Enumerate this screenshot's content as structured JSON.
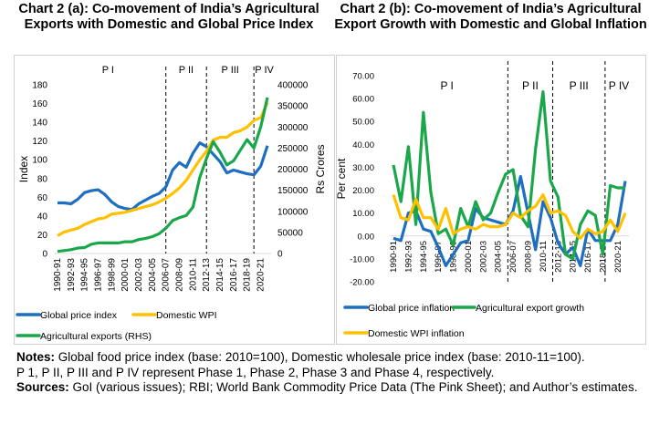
{
  "chart_data": [
    {
      "type": "line",
      "title": "Chart 2 (a): Co-movement of India’s Agricultural Exports with Domestic and Global Price Index",
      "ylabel": "Index",
      "y2label": "Rs Crores",
      "ylim": [
        0,
        180
      ],
      "yticks": [
        0,
        20,
        40,
        60,
        80,
        100,
        120,
        140,
        160,
        180
      ],
      "y2lim": [
        0,
        400000
      ],
      "y2ticks": [
        0,
        50000,
        100000,
        150000,
        200000,
        250000,
        300000,
        350000,
        400000
      ],
      "categories": [
        "1990-91",
        "1991-92",
        "1992-93",
        "1993-94",
        "1994-95",
        "1995-96",
        "1996-97",
        "1997-98",
        "1998-99",
        "1999-00",
        "2000-01",
        "2001-02",
        "2002-03",
        "2003-04",
        "2004-05",
        "2005-06",
        "2006-07",
        "2007-08",
        "2008-09",
        "2009-10",
        "2010-11",
        "2011-12",
        "2012-13",
        "2013-14",
        "2014-15",
        "2015-16",
        "2016-17",
        "2017-18",
        "2018-19",
        "2019-20",
        "2020-21",
        "2021-22"
      ],
      "xtick_labels": [
        "1990-91",
        "1992-93",
        "1994-95",
        "1996-97",
        "1998-99",
        "2000-01",
        "2002-03",
        "2004-05",
        "2006-07",
        "2008-09",
        "2010-11",
        "2012-13",
        "2014-15",
        "2016-17",
        "2018-19",
        "2020-21"
      ],
      "phases": [
        "P I",
        "P II",
        "P III",
        "P IV"
      ],
      "phase_dividers": [
        "2006-07",
        "2012-13",
        "2019-20"
      ],
      "grid": false,
      "legend_position": "bottom",
      "series": [
        {
          "name": "Global price index",
          "color": "#1f6fc0",
          "axis": "left",
          "values": [
            54,
            54,
            53,
            58,
            65,
            67,
            68,
            63,
            55,
            50,
            48,
            47,
            53,
            57,
            61,
            64,
            71,
            89,
            97,
            92,
            107,
            118,
            114,
            106,
            98,
            86,
            89,
            87,
            85,
            84,
            93,
            115
          ]
        },
        {
          "name": "Domestic WPI",
          "color": "#ffc000",
          "axis": "left",
          "values": [
            19,
            23,
            25,
            27,
            31,
            34,
            37,
            38,
            42,
            43,
            44,
            46,
            48,
            50,
            52,
            55,
            59,
            64,
            70,
            78,
            89,
            100,
            109,
            121,
            124,
            124,
            129,
            131,
            135,
            142,
            145,
            161
          ]
        },
        {
          "name": "Agricultural exports (RHS)",
          "color": "#1aa74a",
          "axis": "right",
          "values": [
            5000,
            7000,
            9000,
            13000,
            14000,
            22000,
            25000,
            25000,
            25000,
            25000,
            28000,
            28000,
            33000,
            36000,
            40000,
            47000,
            60000,
            78000,
            85000,
            90000,
            110000,
            180000,
            225000,
            265000,
            240000,
            210000,
            220000,
            245000,
            270000,
            250000,
            300000,
            370000
          ]
        }
      ]
    },
    {
      "type": "line",
      "title": "Chart 2 (b): Co-movement of India’s Agricultural Export Growth with Domestic and Global Inflation",
      "ylabel": "Per cent",
      "ylim": [
        -20,
        70
      ],
      "yticks": [
        "-20.00",
        "-10.00",
        "0.00",
        "10.00",
        "20.00",
        "30.00",
        "40.00",
        "50.00",
        "60.00",
        "70.00"
      ],
      "categories": [
        "1990-91",
        "1991-92",
        "1992-93",
        "1993-94",
        "1994-95",
        "1995-96",
        "1996-97",
        "1997-98",
        "1998-99",
        "1999-00",
        "2000-01",
        "2001-02",
        "2002-03",
        "2003-04",
        "2004-05",
        "2005-06",
        "2006-07",
        "2007-08",
        "2008-09",
        "2009-10",
        "2010-11",
        "2011-12",
        "2012-13",
        "2013-14",
        "2014-15",
        "2015-16",
        "2016-17",
        "2017-18",
        "2018-19",
        "2019-20",
        "2020-21",
        "2021-22"
      ],
      "xtick_labels": [
        "1990-91",
        "1992-93",
        "1994-95",
        "1996-97",
        "1998-99",
        "2000-01",
        "2002-03",
        "2004-05",
        "2006-07",
        "2008-09",
        "2010-11",
        "2012-13",
        "2014-15",
        "2016-17",
        "2018-19",
        "2020-21"
      ],
      "phases": [
        "P I",
        "P II",
        "P III",
        "P IV"
      ],
      "phase_dividers": [
        "2005-06",
        "2011-12",
        "2018-19"
      ],
      "grid": false,
      "legend_position": "bottom",
      "series": [
        {
          "name": "Global price inflation",
          "color": "#1f6fc0",
          "values": [
            -1,
            -2,
            10,
            11,
            3,
            2,
            -5,
            -13,
            -8,
            -3,
            -2,
            12,
            8,
            7,
            6,
            5,
            11,
            26,
            10,
            -6,
            15,
            8,
            -3,
            -8,
            -5,
            -13,
            3,
            -2,
            -2,
            -2,
            5,
            24
          ]
        },
        {
          "name": "Agricultural export growth",
          "color": "#1aa74a",
          "values": [
            31,
            15,
            39,
            5,
            54,
            19,
            1,
            3,
            -4,
            12,
            4,
            15,
            7,
            10,
            19,
            27,
            29,
            9,
            4,
            38,
            63,
            24,
            17,
            -8,
            -10,
            5,
            11,
            9,
            -8,
            22,
            21,
            21
          ]
        },
        {
          "name": "Domestic WPI inflation",
          "color": "#ffc000",
          "values": [
            18,
            8,
            7,
            16,
            8,
            8,
            3,
            12,
            1,
            3,
            4,
            3,
            5,
            4,
            4,
            5,
            10,
            8,
            11,
            13,
            18,
            10,
            11,
            9,
            2,
            -1,
            3,
            1,
            2,
            7,
            2,
            10
          ]
        }
      ]
    }
  ],
  "notes": {
    "notes_label": "Notes:",
    "notes_text": " Global food price index (base: 2010=100), Domestic wholesale price index (base: 2010-11=100).",
    "phases_text": "P 1, P II, P III and P IV represent Phase 1, Phase 2, Phase 3 and Phase 4, respectively.",
    "sources_label": "Sources:",
    "sources_text": " GoI (various issues); RBI; World Bank Commodity Price Data (The Pink Sheet); and Author’s estimates."
  }
}
